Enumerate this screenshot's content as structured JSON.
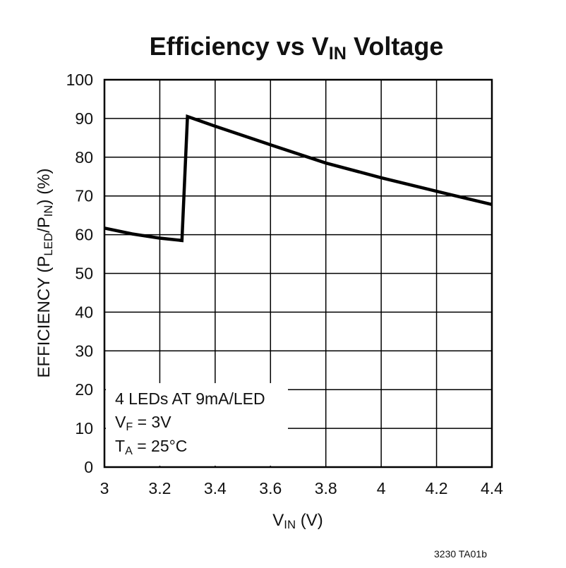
{
  "chart_data": {
    "type": "line",
    "title": [
      "Efficiency vs V",
      "IN",
      " Voltage"
    ],
    "x_label": [
      "V",
      "IN",
      " (V)"
    ],
    "y_label": [
      "EFFICIENCY (P",
      "LED",
      "/P",
      "IN",
      ") (%)"
    ],
    "annotation": [
      "4 LEDs AT 9mA/LED",
      [
        "V",
        "F",
        " = 3V"
      ],
      [
        "T",
        "A",
        " = 25°C"
      ]
    ],
    "footnote": "3230 TA01b",
    "x": [
      3.0,
      3.1,
      3.2,
      3.28,
      3.3,
      3.4,
      3.6,
      3.8,
      4.0,
      4.2,
      4.4
    ],
    "values": [
      61.7,
      60.2,
      59.1,
      58.5,
      90.5,
      88.0,
      83.2,
      78.5,
      74.7,
      71.2,
      67.8
    ],
    "color": "#000000",
    "xlim": [
      3,
      4.4
    ],
    "xticks": [
      3,
      3.2,
      3.4,
      3.6,
      3.8,
      4,
      4.2,
      4.4
    ],
    "ylim": [
      0,
      100
    ],
    "yticks": [
      0,
      10,
      20,
      30,
      40,
      50,
      60,
      70,
      80,
      90,
      100
    ],
    "grid": true
  }
}
